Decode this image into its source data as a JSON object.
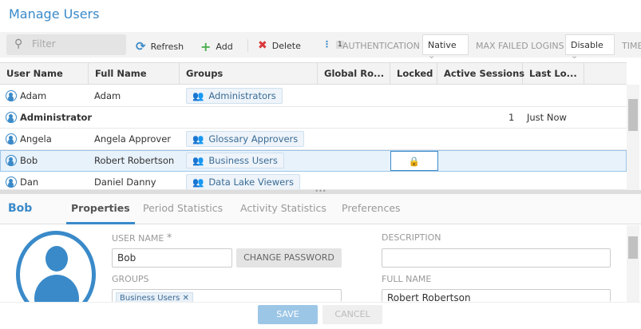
{
  "title": "Manage Users",
  "toolbar": {
    "filter_placeholder": "Filter",
    "refresh": "Refresh",
    "add": "Add",
    "delete": "Delete",
    "badge": "1",
    "auth_label": "AUTHENTICATION",
    "auth_value": "Native",
    "max_failed_label": "MAX FAILED LOGINS",
    "max_failed_value": "Disable",
    "time_label": "TIME"
  },
  "columns": [
    "User Name",
    "Full Name",
    "Groups",
    "Global Ro...",
    "Locked",
    "Active Sessions",
    "Last Lo..."
  ],
  "rows": [
    {
      "user": "Adam",
      "full": "Adam",
      "group": "Administrators",
      "locked": false,
      "sessions": "",
      "last": ""
    },
    {
      "user": "Administrator",
      "full": "",
      "group": "",
      "locked": false,
      "sessions": "1",
      "last": "Just Now"
    },
    {
      "user": "Angela",
      "full": "Angela Approver",
      "group": "Glossary Approvers",
      "locked": false,
      "sessions": "",
      "last": ""
    },
    {
      "user": "Bob",
      "full": "Robert Robertson",
      "group": "Business Users",
      "locked": true,
      "sessions": "",
      "last": ""
    },
    {
      "user": "Dan",
      "full": "Daniel Danny",
      "group": "Data Lake Viewers",
      "locked": false,
      "sessions": "",
      "last": ""
    }
  ],
  "detail": {
    "name": "Bob",
    "tabs": [
      "Properties",
      "Period Statistics",
      "Activity Statistics",
      "Preferences"
    ],
    "user_name_label": "USER NAME",
    "required": "*",
    "user_name": "Bob",
    "change_password": "CHANGE PASSWORD",
    "groups_label": "GROUPS",
    "group_tag": "Business Users",
    "description_label": "DESCRIPTION",
    "description": "",
    "full_name_label": "FULL NAME",
    "full_name": "Robert Robertson"
  },
  "footer": {
    "save": "SAVE",
    "cancel": "CANCEL"
  },
  "colors": {
    "accent": "#3a8ac9",
    "add": "#4caf50",
    "delete": "#d9383a"
  }
}
